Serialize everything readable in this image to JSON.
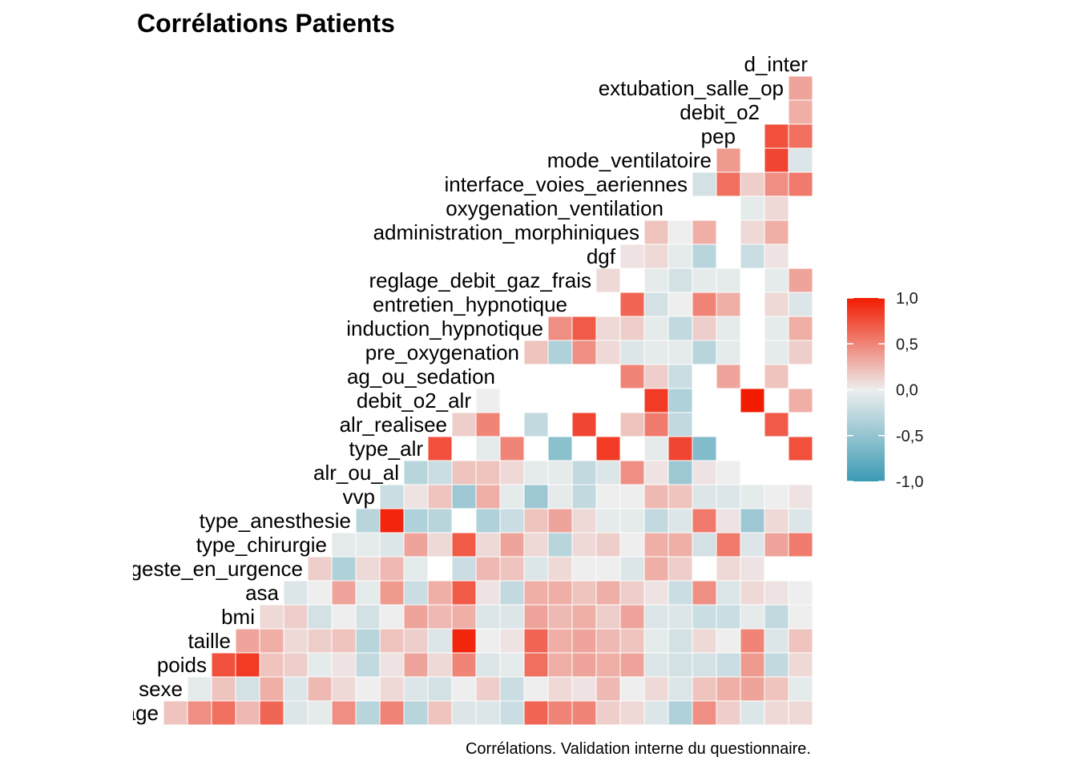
{
  "chart_data": {
    "type": "heatmap",
    "title": "Corrélations Patients",
    "caption": "Corrélations. Validation interne du questionnaire.",
    "variables": [
      "age",
      "sexe",
      "poids",
      "taille",
      "bmi",
      "asa",
      "geste_en_urgence",
      "type_chirurgie",
      "type_anesthesie",
      "vvp",
      "alr_ou_al",
      "type_alr",
      "alr_realisee",
      "debit_o2_alr",
      "ag_ou_sedation",
      "pre_oxygenation",
      "induction_hypnotique",
      "entretien_hypnotique",
      "reglage_debit_gaz_frais",
      "dgf",
      "administration_morphiniques",
      "oxygenation_ventilation",
      "interface_voies_aeriennes",
      "mode_ventilatoire",
      "pep",
      "debit_o2",
      "extubation_salle_op",
      "d_inter"
    ],
    "color_scale": {
      "low": "#3A9AB2",
      "mid": "#EEEEEE",
      "high": "#F11B00",
      "min": -1,
      "max": 1
    },
    "legend": {
      "position": "right",
      "ticks": [
        "1,0",
        "0,5",
        "0,0",
        "-0,5",
        "-1,0"
      ],
      "tick_values": [
        1,
        0.5,
        0,
        -0.5,
        -1
      ]
    },
    "rows": [
      [
        0.2,
        0.45,
        0.6,
        0.25,
        0.65,
        -0.1,
        -0.05,
        0.45,
        -0.3,
        0.5,
        -0.3,
        0.2,
        -0.1,
        -0.1,
        -0.2,
        0.65,
        0.5,
        0.5,
        0.15,
        0.1,
        -0.1,
        -0.35,
        0.45,
        0.15,
        -0.1,
        0.1,
        0.1
      ],
      [
        -0.05,
        0.2,
        -0.15,
        0.3,
        -0.1,
        0.25,
        0.1,
        0.0,
        0.1,
        -0.1,
        -0.15,
        0.0,
        0.15,
        -0.2,
        0.0,
        0.1,
        0.05,
        0.25,
        0.0,
        0.1,
        -0.1,
        0.2,
        0.3,
        0.35,
        0.2,
        -0.05
      ],
      [
        0.75,
        0.85,
        0.2,
        0.15,
        -0.05,
        0.05,
        -0.25,
        0.05,
        0.35,
        0.1,
        0.5,
        -0.1,
        -0.05,
        0.6,
        0.3,
        0.35,
        0.3,
        0.35,
        -0.1,
        -0.15,
        -0.15,
        -0.2,
        0.4,
        -0.25,
        0.1
      ],
      [
        0.35,
        0.3,
        0.1,
        0.15,
        0.2,
        -0.3,
        0.2,
        0.15,
        -0.1,
        0.95,
        0.0,
        0.05,
        0.65,
        0.3,
        0.35,
        0.25,
        0.2,
        -0.05,
        -0.15,
        0.1,
        0.0,
        0.5,
        -0.1,
        0.2
      ],
      [
        0.1,
        0.15,
        -0.15,
        0.0,
        -0.15,
        0.0,
        0.35,
        0.25,
        0.3,
        -0.1,
        -0.1,
        0.35,
        0.25,
        0.3,
        0.15,
        0.35,
        -0.1,
        -0.1,
        -0.2,
        -0.2,
        -0.05,
        -0.25,
        0.0
      ],
      [
        -0.1,
        0.0,
        0.35,
        -0.05,
        0.4,
        -0.2,
        0.3,
        0.7,
        0.05,
        -0.25,
        0.3,
        0.3,
        0.2,
        0.3,
        0.15,
        0.05,
        -0.2,
        0.45,
        -0.1,
        0.1,
        0.05,
        0.0
      ],
      [
        0.15,
        -0.35,
        0.1,
        0.25,
        -0.05,
        null,
        -0.2,
        0.25,
        0.2,
        -0.1,
        0.1,
        0.0,
        0.0,
        -0.1,
        0.3,
        0.15,
        null,
        0.1,
        0.05
      ],
      [
        -0.05,
        -0.05,
        -0.1,
        0.35,
        0.1,
        0.7,
        0.1,
        0.35,
        0.1,
        -0.3,
        0.1,
        0.15,
        0.0,
        0.3,
        0.3,
        -0.15,
        0.55,
        -0.1,
        0.35,
        0.55
      ],
      [
        -0.3,
        0.95,
        -0.35,
        -0.3,
        null,
        -0.35,
        -0.2,
        0.2,
        0.35,
        0.1,
        -0.05,
        -0.05,
        -0.25,
        -0.1,
        0.55,
        0.05,
        -0.45,
        0.1,
        -0.1
      ],
      [
        -0.2,
        0.05,
        0.2,
        -0.45,
        0.3,
        -0.05,
        -0.45,
        -0.05,
        -0.25,
        0.0,
        0.0,
        0.25,
        0.2,
        -0.1,
        -0.1,
        -0.05,
        0.0,
        0.05
      ],
      [
        -0.3,
        -0.2,
        0.2,
        0.2,
        0.1,
        -0.05,
        -0.05,
        -0.25,
        -0.1,
        0.45,
        0.05,
        -0.45,
        0.05,
        0.0
      ],
      [
        0.75,
        null,
        -0.05,
        0.5,
        null,
        -0.55,
        null,
        0.85,
        null,
        -0.05,
        0.8,
        -0.6,
        null,
        null,
        null,
        0.75
      ],
      [
        0.15,
        0.5,
        null,
        -0.25,
        null,
        0.8,
        null,
        0.2,
        0.55,
        -0.25,
        null,
        null,
        null,
        0.7
      ],
      [
        0.0,
        null,
        null,
        null,
        null,
        null,
        null,
        0.85,
        -0.35,
        null,
        null,
        1.0,
        null,
        0.3
      ],
      [
        null,
        null,
        null,
        null,
        null,
        0.5,
        0.15,
        -0.2,
        null,
        0.35,
        null,
        0.2
      ],
      [
        0.2,
        -0.35,
        0.45,
        0.1,
        -0.1,
        -0.05,
        -0.05,
        -0.3,
        -0.05,
        null,
        -0.05,
        0.15
      ],
      [
        0.45,
        0.7,
        0.1,
        0.15,
        -0.05,
        -0.25,
        0.15,
        -0.05,
        null,
        -0.05,
        0.3
      ],
      [
        null,
        null,
        0.65,
        -0.15,
        0.0,
        0.5,
        0.3,
        null,
        0.1,
        -0.1
      ],
      [
        0.1,
        null,
        -0.05,
        -0.15,
        -0.05,
        -0.05,
        null,
        -0.05,
        0.35
      ],
      [
        0.05,
        0.1,
        -0.05,
        -0.3,
        null,
        -0.2,
        0.05
      ],
      [
        0.2,
        0.0,
        0.3,
        null,
        0.1,
        0.3
      ],
      [
        null,
        null,
        null,
        -0.05,
        0.1
      ],
      [
        -0.15,
        0.6,
        0.15,
        0.45,
        0.55
      ],
      [
        0.4,
        null,
        0.8,
        -0.1
      ],
      [
        null,
        0.75,
        0.6
      ],
      [
        null,
        0.3
      ],
      [
        0.35
      ]
    ]
  }
}
